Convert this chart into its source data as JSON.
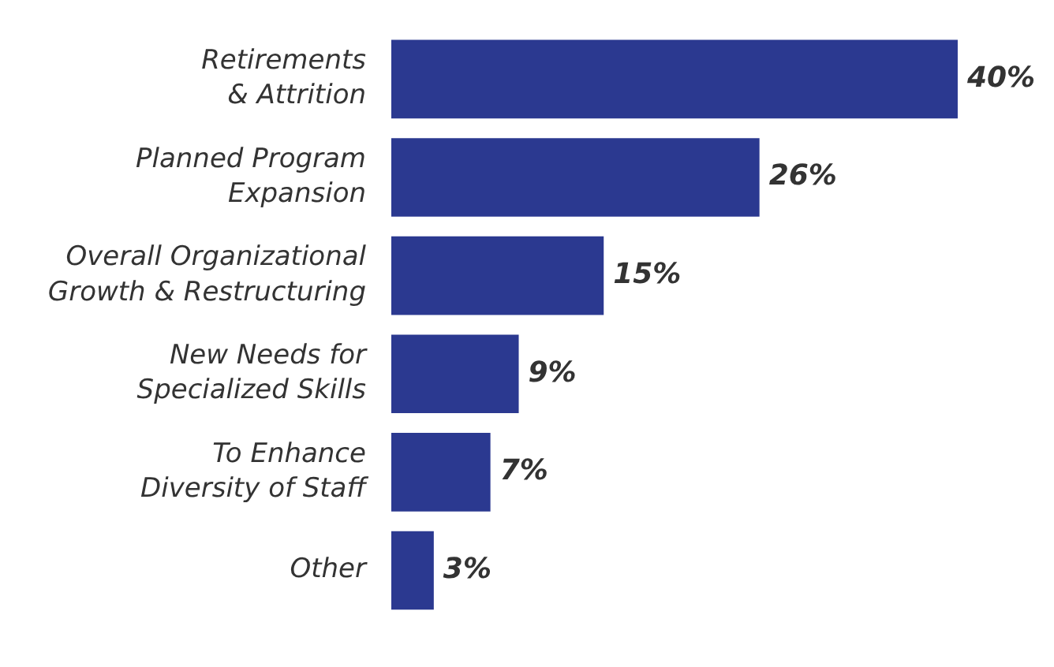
{
  "chart_data": {
    "type": "bar",
    "orientation": "horizontal",
    "categories": [
      "Retirements\n& Attrition",
      "Planned Program\nExpansion",
      "Overall Organizational\nGrowth & Restructuring",
      "New Needs for\nSpecialized Skills",
      "To Enhance\nDiversity of Staff",
      "Other"
    ],
    "values": [
      40,
      26,
      15,
      9,
      7,
      3
    ],
    "color": "#2b3990",
    "data_labels": true,
    "value_labels": [
      "40%",
      "26%",
      "15%",
      "9%",
      "7%",
      "3%"
    ],
    "legend": false
  }
}
